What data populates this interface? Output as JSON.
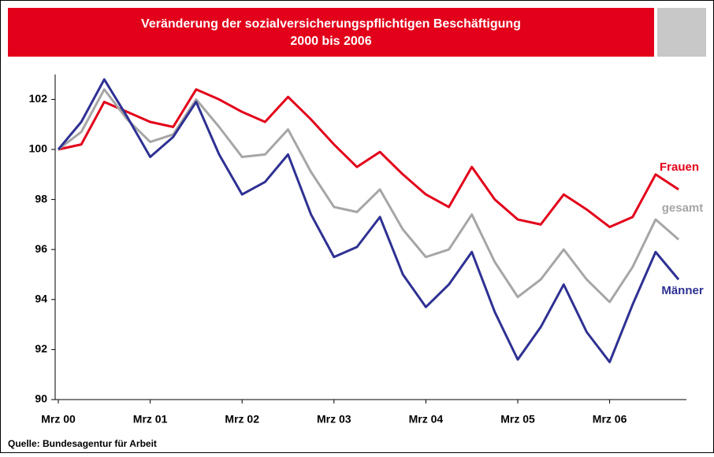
{
  "chart_data": {
    "type": "line",
    "title": "Veränderung der sozialversicherungspflichtigen Beschäftigung",
    "subtitle": "2000 bis 2006",
    "source": "Quelle: Bundesagentur für Arbeit",
    "categories": [
      "Mrz 00",
      null,
      null,
      null,
      "Mrz 01",
      null,
      null,
      null,
      "Mrz 02",
      null,
      null,
      null,
      "Mrz 03",
      null,
      null,
      null,
      "Mrz 04",
      null,
      null,
      null,
      "Mrz 05",
      null,
      null,
      null,
      "Mrz 06",
      null,
      null,
      null
    ],
    "series": [
      {
        "name": "Frauen",
        "color": "#e2001a",
        "values": [
          100.0,
          100.2,
          101.9,
          101.5,
          101.1,
          100.9,
          102.4,
          102.0,
          101.5,
          101.1,
          102.1,
          101.2,
          100.2,
          99.3,
          99.9,
          99.0,
          98.2,
          97.7,
          99.3,
          98.0,
          97.2,
          97.0,
          98.2,
          97.6,
          96.9,
          97.3,
          99.0,
          98.4
        ]
      },
      {
        "name": "gesamt",
        "color": "#a6a6a6",
        "values": [
          100.0,
          100.7,
          102.4,
          101.2,
          100.3,
          100.6,
          102.0,
          100.9,
          99.7,
          99.8,
          100.8,
          99.1,
          97.7,
          97.5,
          98.4,
          96.8,
          95.7,
          96.0,
          97.4,
          95.5,
          94.1,
          94.8,
          96.0,
          94.8,
          93.9,
          95.3,
          97.2,
          96.4
        ]
      },
      {
        "name": "Männer",
        "color": "#2e3192",
        "values": [
          100.0,
          101.1,
          102.8,
          101.3,
          99.7,
          100.5,
          101.9,
          99.8,
          98.2,
          98.7,
          99.8,
          97.4,
          95.7,
          96.1,
          97.3,
          95.0,
          93.7,
          94.6,
          95.9,
          93.5,
          91.6,
          92.9,
          94.6,
          92.7,
          91.5,
          93.8,
          95.9,
          94.8
        ]
      }
    ],
    "ylim": [
      90,
      103
    ],
    "yticks": [
      90,
      92,
      94,
      96,
      98,
      100,
      102
    ]
  }
}
